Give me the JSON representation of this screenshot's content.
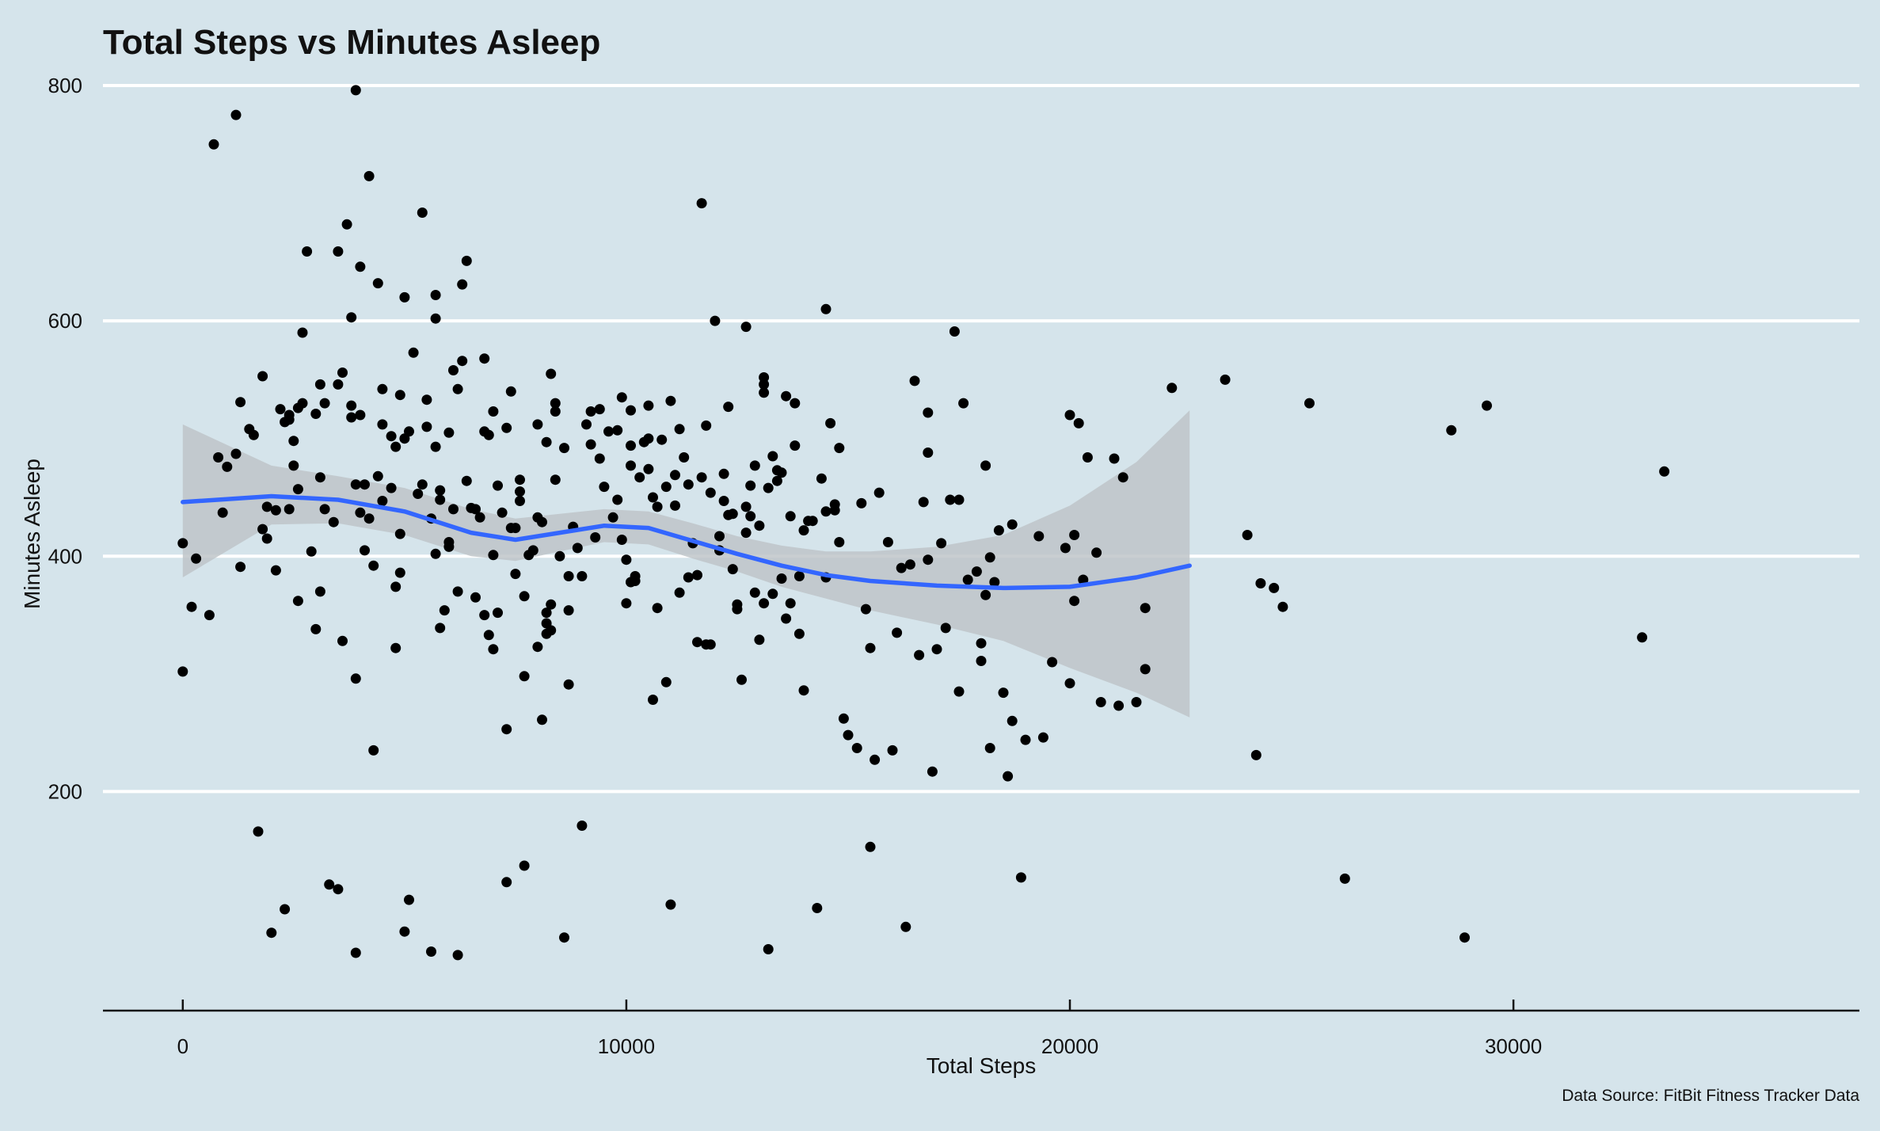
{
  "chart_data": {
    "type": "scatter",
    "title": "Total Steps vs Minutes Asleep",
    "xlabel": "Total Steps",
    "ylabel": "Minutes Asleep",
    "caption": "Data Source: FitBit Fitness Tracker Data",
    "xlim": [
      -1800,
      37800
    ],
    "ylim": [
      30,
      800
    ],
    "x_ticks": [
      0,
      10000,
      20000,
      30000
    ],
    "y_ticks": [
      200,
      400,
      600,
      800
    ],
    "grid": {
      "horizontal": true,
      "vertical": false
    },
    "colors": {
      "background": "#d5e4eb",
      "points": "#000000",
      "smooth": "#3366ff",
      "band": "#bdc3c7",
      "grid": "#ffffff"
    },
    "points": [
      [
        0,
        411
      ],
      [
        0,
        302
      ],
      [
        300,
        398
      ],
      [
        200,
        357
      ],
      [
        600,
        350
      ],
      [
        700,
        750
      ],
      [
        800,
        484
      ],
      [
        900,
        437
      ],
      [
        1000,
        476
      ],
      [
        1200,
        775
      ],
      [
        1200,
        487
      ],
      [
        1300,
        531
      ],
      [
        1300,
        391
      ],
      [
        1500,
        508
      ],
      [
        1600,
        503
      ],
      [
        1700,
        166
      ],
      [
        1800,
        423
      ],
      [
        1800,
        553
      ],
      [
        1900,
        442
      ],
      [
        1900,
        415
      ],
      [
        2000,
        80
      ],
      [
        2100,
        388
      ],
      [
        2100,
        439
      ],
      [
        2200,
        525
      ],
      [
        2300,
        100
      ],
      [
        2300,
        514
      ],
      [
        2400,
        440
      ],
      [
        2400,
        516
      ],
      [
        2400,
        520
      ],
      [
        2500,
        498
      ],
      [
        2500,
        477
      ],
      [
        2600,
        362
      ],
      [
        2600,
        526
      ],
      [
        2600,
        457
      ],
      [
        2700,
        590
      ],
      [
        2700,
        530
      ],
      [
        2800,
        659
      ],
      [
        2900,
        404
      ],
      [
        3000,
        521
      ],
      [
        3000,
        338
      ],
      [
        3100,
        370
      ],
      [
        3100,
        546
      ],
      [
        3100,
        467
      ],
      [
        3200,
        530
      ],
      [
        3200,
        440
      ],
      [
        3300,
        121
      ],
      [
        3400,
        429
      ],
      [
        3500,
        659
      ],
      [
        3500,
        546
      ],
      [
        3500,
        117
      ],
      [
        3600,
        328
      ],
      [
        3600,
        556
      ],
      [
        3700,
        682
      ],
      [
        3800,
        528
      ],
      [
        3800,
        518
      ],
      [
        3800,
        603
      ],
      [
        3900,
        63
      ],
      [
        3900,
        796
      ],
      [
        3900,
        296
      ],
      [
        3900,
        461
      ],
      [
        4000,
        520
      ],
      [
        4000,
        437
      ],
      [
        4000,
        646
      ],
      [
        4100,
        405
      ],
      [
        4100,
        461
      ],
      [
        4200,
        723
      ],
      [
        4200,
        432
      ],
      [
        4300,
        235
      ],
      [
        4300,
        392
      ],
      [
        4400,
        632
      ],
      [
        4400,
        468
      ],
      [
        4500,
        542
      ],
      [
        4500,
        512
      ],
      [
        4500,
        447
      ],
      [
        4700,
        502
      ],
      [
        4700,
        458
      ],
      [
        4800,
        322
      ],
      [
        4800,
        374
      ],
      [
        4800,
        493
      ],
      [
        4900,
        386
      ],
      [
        4900,
        537
      ],
      [
        4900,
        419
      ],
      [
        5000,
        81
      ],
      [
        5000,
        500
      ],
      [
        5000,
        620
      ],
      [
        5100,
        108
      ],
      [
        5100,
        506
      ],
      [
        5200,
        573
      ],
      [
        5300,
        453
      ],
      [
        5400,
        692
      ],
      [
        5400,
        461
      ],
      [
        5500,
        510
      ],
      [
        5500,
        533
      ],
      [
        5600,
        64
      ],
      [
        5600,
        432
      ],
      [
        5700,
        493
      ],
      [
        5700,
        402
      ],
      [
        5700,
        622
      ],
      [
        5700,
        602
      ],
      [
        5800,
        339
      ],
      [
        5800,
        448
      ],
      [
        5800,
        456
      ],
      [
        5900,
        354
      ],
      [
        6000,
        505
      ],
      [
        6000,
        408
      ],
      [
        6000,
        412
      ],
      [
        6100,
        558
      ],
      [
        6100,
        440
      ],
      [
        6200,
        542
      ],
      [
        6200,
        370
      ],
      [
        6200,
        61
      ],
      [
        6300,
        631
      ],
      [
        6300,
        566
      ],
      [
        6400,
        651
      ],
      [
        6400,
        464
      ],
      [
        6500,
        441
      ],
      [
        6600,
        365
      ],
      [
        6600,
        440
      ],
      [
        6700,
        433
      ],
      [
        6800,
        350
      ],
      [
        6800,
        506
      ],
      [
        6800,
        568
      ],
      [
        6900,
        503
      ],
      [
        6900,
        333
      ],
      [
        7000,
        523
      ],
      [
        7000,
        401
      ],
      [
        7000,
        321
      ],
      [
        7100,
        460
      ],
      [
        7100,
        352
      ],
      [
        7200,
        437
      ],
      [
        7300,
        509
      ],
      [
        7300,
        123
      ],
      [
        7300,
        253
      ],
      [
        7400,
        540
      ],
      [
        7400,
        424
      ],
      [
        7500,
        424
      ],
      [
        7500,
        385
      ],
      [
        7600,
        447
      ],
      [
        7600,
        465
      ],
      [
        7600,
        455
      ],
      [
        7700,
        366
      ],
      [
        7700,
        137
      ],
      [
        7700,
        298
      ],
      [
        7800,
        401
      ],
      [
        7900,
        405
      ],
      [
        8000,
        433
      ],
      [
        8000,
        323
      ],
      [
        8000,
        512
      ],
      [
        8100,
        261
      ],
      [
        8100,
        429
      ],
      [
        8200,
        352
      ],
      [
        8200,
        497
      ],
      [
        8200,
        343
      ],
      [
        8200,
        334
      ],
      [
        8300,
        555
      ],
      [
        8300,
        359
      ],
      [
        8300,
        337
      ],
      [
        8400,
        530
      ],
      [
        8400,
        523
      ],
      [
        8400,
        465
      ],
      [
        8500,
        400
      ],
      [
        8600,
        76
      ],
      [
        8600,
        492
      ],
      [
        8700,
        383
      ],
      [
        8700,
        354
      ],
      [
        8700,
        291
      ],
      [
        8800,
        425
      ],
      [
        8900,
        407
      ],
      [
        9000,
        383
      ],
      [
        9000,
        171
      ],
      [
        9100,
        512
      ],
      [
        9200,
        523
      ],
      [
        9200,
        495
      ],
      [
        9300,
        416
      ],
      [
        9400,
        525
      ],
      [
        9400,
        483
      ],
      [
        9500,
        459
      ],
      [
        9600,
        506
      ],
      [
        9700,
        433
      ],
      [
        9800,
        507
      ],
      [
        9800,
        448
      ],
      [
        9900,
        535
      ],
      [
        9900,
        414
      ],
      [
        10000,
        360
      ],
      [
        10000,
        397
      ],
      [
        10100,
        524
      ],
      [
        10100,
        494
      ],
      [
        10100,
        477
      ],
      [
        10100,
        378
      ],
      [
        10200,
        379
      ],
      [
        10200,
        383
      ],
      [
        10300,
        467
      ],
      [
        10400,
        497
      ],
      [
        10500,
        500
      ],
      [
        10500,
        528
      ],
      [
        10500,
        474
      ],
      [
        10600,
        450
      ],
      [
        10600,
        278
      ],
      [
        10700,
        442
      ],
      [
        10700,
        356
      ],
      [
        10800,
        499
      ],
      [
        10900,
        459
      ],
      [
        10900,
        293
      ],
      [
        11000,
        104
      ],
      [
        11000,
        532
      ],
      [
        11100,
        469
      ],
      [
        11100,
        443
      ],
      [
        11200,
        369
      ],
      [
        11200,
        508
      ],
      [
        11300,
        484
      ],
      [
        11400,
        461
      ],
      [
        11400,
        382
      ],
      [
        11500,
        411
      ],
      [
        11600,
        384
      ],
      [
        11600,
        327
      ],
      [
        11700,
        467
      ],
      [
        11700,
        700
      ],
      [
        11800,
        511
      ],
      [
        11800,
        325
      ],
      [
        11900,
        325
      ],
      [
        11900,
        454
      ],
      [
        12000,
        600
      ],
      [
        12100,
        417
      ],
      [
        12100,
        405
      ],
      [
        12200,
        470
      ],
      [
        12200,
        447
      ],
      [
        12300,
        435
      ],
      [
        12300,
        527
      ],
      [
        12400,
        436
      ],
      [
        12400,
        389
      ],
      [
        12500,
        355
      ],
      [
        12500,
        359
      ],
      [
        12600,
        295
      ],
      [
        12700,
        595
      ],
      [
        12700,
        442
      ],
      [
        12700,
        420
      ],
      [
        12800,
        460
      ],
      [
        12800,
        434
      ],
      [
        12900,
        477
      ],
      [
        12900,
        369
      ],
      [
        13000,
        329
      ],
      [
        13000,
        426
      ],
      [
        13100,
        539
      ],
      [
        13100,
        552
      ],
      [
        13100,
        546
      ],
      [
        13100,
        360
      ],
      [
        13200,
        66
      ],
      [
        13200,
        458
      ],
      [
        13300,
        368
      ],
      [
        13300,
        485
      ],
      [
        13400,
        464
      ],
      [
        13400,
        473
      ],
      [
        13500,
        381
      ],
      [
        13500,
        471
      ],
      [
        13600,
        536
      ],
      [
        13600,
        347
      ],
      [
        13700,
        360
      ],
      [
        13700,
        434
      ],
      [
        13800,
        530
      ],
      [
        13800,
        494
      ],
      [
        13900,
        383
      ],
      [
        13900,
        334
      ],
      [
        14000,
        422
      ],
      [
        14000,
        286
      ],
      [
        14100,
        430
      ],
      [
        14200,
        430
      ],
      [
        14300,
        101
      ],
      [
        14400,
        466
      ],
      [
        14500,
        610
      ],
      [
        14500,
        438
      ],
      [
        14500,
        382
      ],
      [
        14600,
        513
      ],
      [
        14700,
        444
      ],
      [
        14700,
        439
      ],
      [
        14800,
        492
      ],
      [
        14800,
        412
      ],
      [
        14900,
        262
      ],
      [
        15000,
        248
      ],
      [
        15200,
        237
      ],
      [
        15300,
        445
      ],
      [
        15400,
        355
      ],
      [
        15500,
        153
      ],
      [
        15500,
        322
      ],
      [
        15600,
        227
      ],
      [
        15700,
        454
      ],
      [
        15900,
        412
      ],
      [
        16000,
        235
      ],
      [
        16100,
        335
      ],
      [
        16200,
        390
      ],
      [
        16300,
        85
      ],
      [
        16400,
        393
      ],
      [
        16500,
        549
      ],
      [
        16600,
        316
      ],
      [
        16700,
        446
      ],
      [
        16800,
        488
      ],
      [
        16800,
        397
      ],
      [
        16800,
        522
      ],
      [
        16900,
        217
      ],
      [
        17000,
        321
      ],
      [
        17100,
        411
      ],
      [
        17200,
        339
      ],
      [
        17300,
        448
      ],
      [
        17400,
        591
      ],
      [
        17500,
        285
      ],
      [
        17500,
        448
      ],
      [
        17600,
        530
      ],
      [
        17700,
        380
      ],
      [
        17900,
        387
      ],
      [
        18000,
        311
      ],
      [
        18000,
        326
      ],
      [
        18100,
        367
      ],
      [
        18100,
        477
      ],
      [
        18200,
        237
      ],
      [
        18200,
        399
      ],
      [
        18300,
        378
      ],
      [
        18400,
        422
      ],
      [
        18500,
        284
      ],
      [
        18600,
        213
      ],
      [
        18700,
        260
      ],
      [
        18700,
        427
      ],
      [
        18900,
        127
      ],
      [
        19000,
        244
      ],
      [
        19300,
        417
      ],
      [
        19400,
        246
      ],
      [
        19600,
        310
      ],
      [
        19900,
        407
      ],
      [
        20000,
        520
      ],
      [
        20000,
        292
      ],
      [
        20100,
        418
      ],
      [
        20100,
        362
      ],
      [
        20200,
        513
      ],
      [
        20300,
        380
      ],
      [
        20400,
        484
      ],
      [
        20600,
        403
      ],
      [
        20700,
        276
      ],
      [
        21000,
        483
      ],
      [
        21100,
        273
      ],
      [
        21200,
        467
      ],
      [
        21500,
        276
      ],
      [
        21700,
        356
      ],
      [
        21700,
        304
      ],
      [
        22300,
        543
      ],
      [
        23500,
        550
      ],
      [
        24000,
        418
      ],
      [
        24200,
        231
      ],
      [
        24300,
        377
      ],
      [
        24600,
        373
      ],
      [
        24800,
        357
      ],
      [
        25400,
        530
      ],
      [
        26200,
        126
      ],
      [
        28600,
        507
      ],
      [
        28900,
        76
      ],
      [
        29400,
        528
      ],
      [
        32900,
        331
      ],
      [
        33400,
        472
      ]
    ],
    "smooth": [
      [
        0,
        446
      ],
      [
        2000,
        451
      ],
      [
        3500,
        448
      ],
      [
        5000,
        438
      ],
      [
        6500,
        420
      ],
      [
        7500,
        414
      ],
      [
        8500,
        420
      ],
      [
        9500,
        426
      ],
      [
        10500,
        424
      ],
      [
        11500,
        413
      ],
      [
        12500,
        402
      ],
      [
        13500,
        392
      ],
      [
        14500,
        384
      ],
      [
        15500,
        379
      ],
      [
        17000,
        375
      ],
      [
        18500,
        373
      ],
      [
        20000,
        374
      ],
      [
        21500,
        382
      ],
      [
        22700,
        392
      ]
    ],
    "ribbon_upper": [
      [
        0,
        512
      ],
      [
        2000,
        477
      ],
      [
        3500,
        468
      ],
      [
        5000,
        458
      ],
      [
        6500,
        440
      ],
      [
        7500,
        432
      ],
      [
        8500,
        436
      ],
      [
        9500,
        440
      ],
      [
        10500,
        438
      ],
      [
        11500,
        428
      ],
      [
        12500,
        417
      ],
      [
        13500,
        409
      ],
      [
        14500,
        404
      ],
      [
        15500,
        404
      ],
      [
        17000,
        408
      ],
      [
        18500,
        418
      ],
      [
        20000,
        443
      ],
      [
        21500,
        480
      ],
      [
        22700,
        524
      ]
    ],
    "ribbon_lower": [
      [
        0,
        382
      ],
      [
        2000,
        427
      ],
      [
        3500,
        428
      ],
      [
        5000,
        418
      ],
      [
        6500,
        400
      ],
      [
        7500,
        396
      ],
      [
        8500,
        404
      ],
      [
        9500,
        412
      ],
      [
        10500,
        410
      ],
      [
        11500,
        398
      ],
      [
        12500,
        387
      ],
      [
        13500,
        374
      ],
      [
        14500,
        364
      ],
      [
        15500,
        354
      ],
      [
        17000,
        342
      ],
      [
        18500,
        328
      ],
      [
        20000,
        305
      ],
      [
        21500,
        284
      ],
      [
        22700,
        263
      ]
    ]
  }
}
